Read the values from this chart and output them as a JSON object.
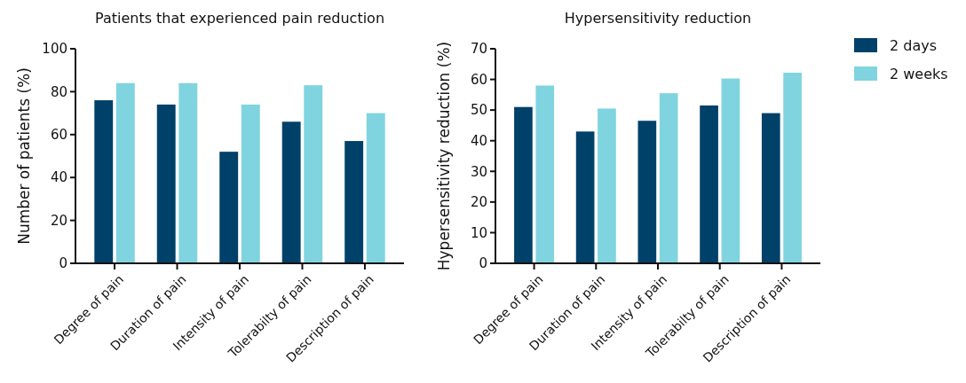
{
  "chart_data": [
    {
      "type": "bar",
      "title": "Patients that experienced pain reduction",
      "ylabel": "Number of patients (%)",
      "categories": [
        "Degree of pain",
        "Duration of pain",
        "Intensity of pain",
        "Tolerabilty of pain",
        "Description of pain"
      ],
      "series": [
        {
          "color": "#004169",
          "values": [
            76,
            74,
            52,
            66,
            57
          ]
        },
        {
          "color": "#80d4e0",
          "values": [
            84,
            84,
            74,
            83,
            70
          ]
        }
      ],
      "ylim": [
        0,
        100
      ],
      "yticks": [
        0,
        20,
        40,
        60,
        80,
        100
      ],
      "grid": false,
      "legend": false
    },
    {
      "type": "bar",
      "title": "Hypersensitivity reduction",
      "ylabel": "Hypersensitivity reduction (%)",
      "categories": [
        "Degree of pain",
        "Duration of pain",
        "Intensity of pain",
        "Tolerabilty of pain",
        "Description of pain"
      ],
      "series": [
        {
          "name": "2 days",
          "color": "#004169",
          "values": [
            51,
            43,
            46.5,
            51.5,
            49
          ]
        },
        {
          "name": "2 weeks",
          "color": "#80d4e0",
          "values": [
            58,
            50.5,
            55.5,
            60.3,
            62.2
          ]
        }
      ],
      "ylim": [
        0,
        70
      ],
      "yticks": [
        0,
        10,
        20,
        30,
        40,
        50,
        60,
        70
      ],
      "grid": false,
      "legend": "right"
    }
  ]
}
